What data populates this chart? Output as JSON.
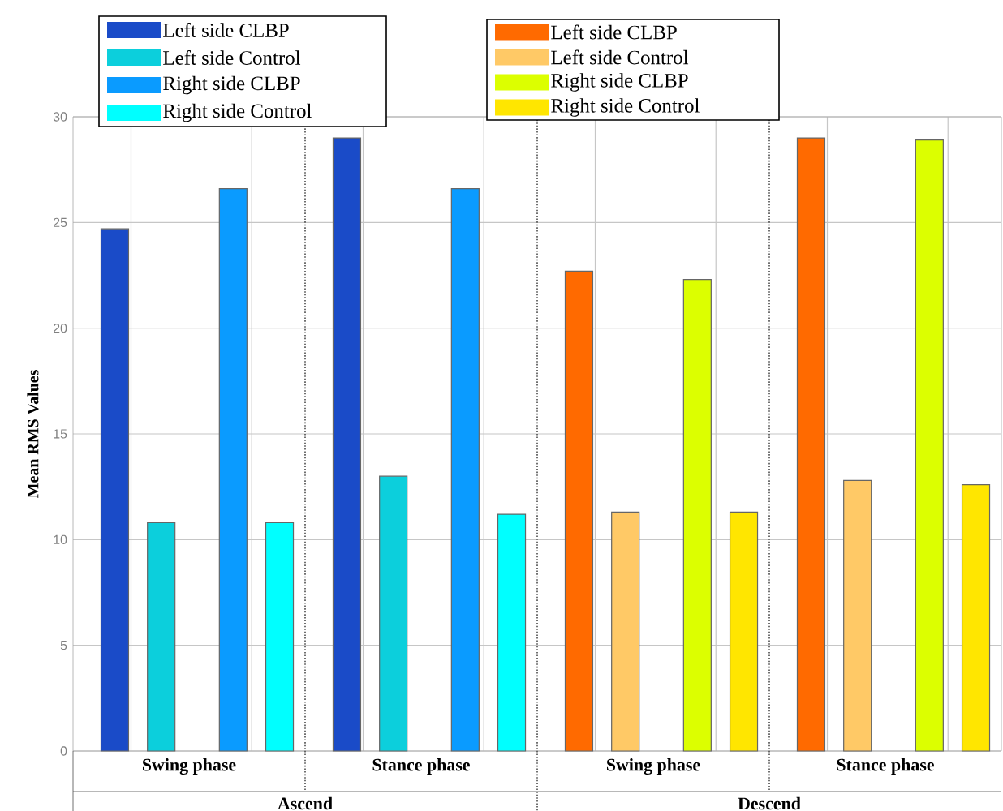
{
  "chart_data": {
    "type": "bar",
    "ylabel": "Mean RMS Values",
    "categories": [
      "Swing phase",
      "Stance phase",
      "Swing phase",
      "Stance phase"
    ],
    "annotations": [
      "Ascend",
      "Descend"
    ],
    "series": [
      {
        "name": "Left side CLBP",
        "color": "#1a4bc8",
        "values": [
          24.7,
          29.0,
          null,
          null
        ]
      },
      {
        "name": "Left side Control",
        "color": "#0ccfdc",
        "values": [
          10.8,
          13.0,
          null,
          null
        ]
      },
      {
        "name": "Right side CLBP",
        "color": "#0a9bff",
        "values": [
          26.6,
          26.6,
          null,
          null
        ]
      },
      {
        "name": "Right side Control",
        "color": "#00ffff",
        "values": [
          10.8,
          11.2,
          null,
          null
        ]
      },
      {
        "name": "Left side CLBP",
        "color": "#ff6a00",
        "values": [
          null,
          null,
          22.7,
          29.0
        ]
      },
      {
        "name": "Left side Control",
        "color": "#ffc966",
        "values": [
          null,
          null,
          11.3,
          12.8
        ]
      },
      {
        "name": "Right side CLBP",
        "color": "#dcff00",
        "values": [
          null,
          null,
          22.3,
          28.9
        ]
      },
      {
        "name": "Right side Control",
        "color": "#ffe600",
        "values": [
          null,
          null,
          11.3,
          12.6
        ]
      }
    ],
    "ylim": [
      0,
      30
    ],
    "yticks": [
      0,
      5,
      10,
      15,
      20,
      25,
      30
    ],
    "grid": true,
    "legend": "top"
  }
}
